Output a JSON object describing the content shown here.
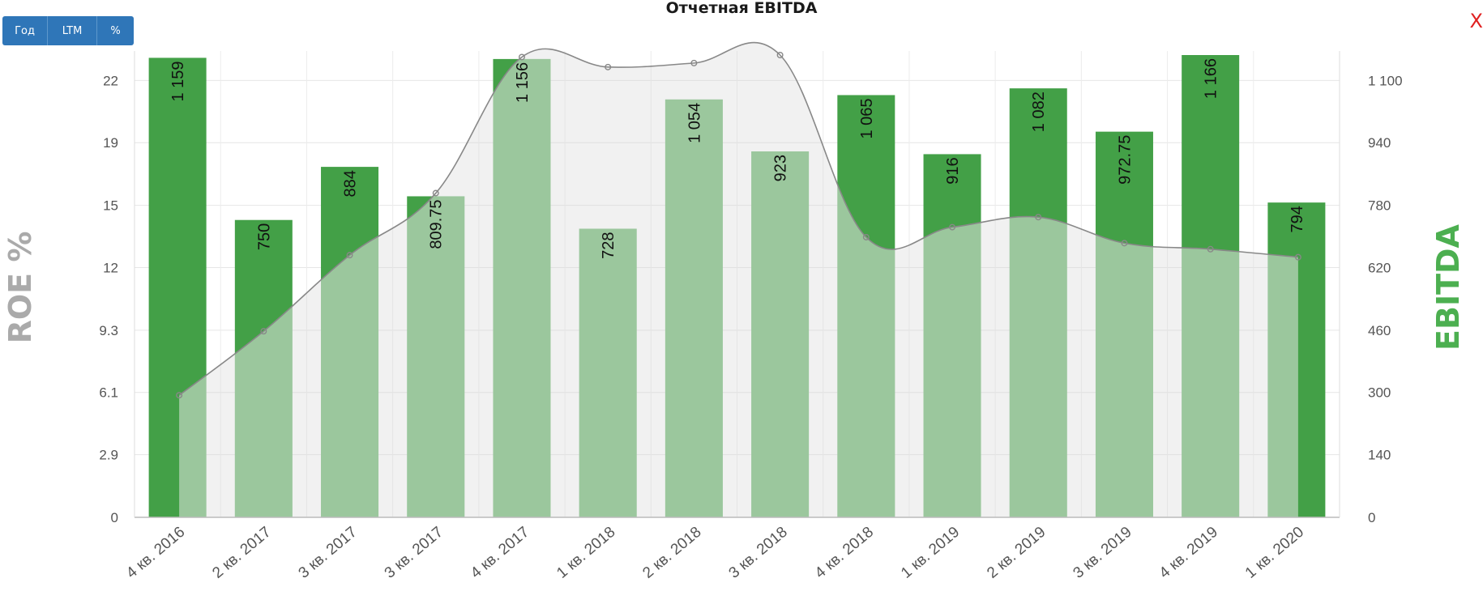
{
  "toolbar": {
    "buttons": [
      "Год",
      "LTM",
      "%"
    ],
    "close_label": "X"
  },
  "chart_data": {
    "type": "bar",
    "title": "Отчетная EBITDA",
    "categories": [
      "4 кв. 2016",
      "2 кв. 2017",
      "3 кв. 2017",
      "3 кв. 2017",
      "4 кв. 2017",
      "1 кв. 2018",
      "2 кв. 2018",
      "3 кв. 2018",
      "4 кв. 2018",
      "1 кв. 2019",
      "2 кв. 2019",
      "3 кв. 2019",
      "4 кв. 2019",
      "1 кв. 2020"
    ],
    "series": [
      {
        "name": "EBITDA",
        "axis": "right",
        "color": "#43a047",
        "values": [
          1159,
          750,
          884,
          809.75,
          1156,
          728,
          1054,
          923,
          1065,
          916,
          1082,
          972.75,
          1166,
          794
        ],
        "labels": [
          "1 159",
          "750",
          "884",
          "809.75",
          "1 156",
          "728",
          "1 054",
          "923",
          "1 065",
          "916",
          "1 082",
          "972.75",
          "1 166",
          "794"
        ]
      },
      {
        "name": "ROE %",
        "axis": "left",
        "type": "area",
        "color": "#888888",
        "values": [
          6.1,
          9.3,
          13.1,
          16.2,
          23.0,
          22.5,
          22.7,
          23.1,
          14.0,
          14.5,
          15.0,
          13.7,
          13.4,
          13.0
        ]
      }
    ],
    "ylabel_left": "ROE %",
    "ylabel_right": "EBITDA",
    "yticks_left": [
      "0",
      "2.9",
      "6.1",
      "9.3",
      "12",
      "15",
      "19",
      "22"
    ],
    "yticks_right": [
      "0",
      "140",
      "300",
      "460",
      "620",
      "780",
      "940",
      "1 100"
    ],
    "ylim_left": [
      0,
      23.1
    ],
    "ylim_right": [
      0,
      1166
    ],
    "grid": true
  }
}
